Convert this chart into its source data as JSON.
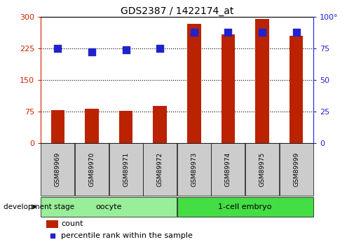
{
  "title": "GDS2387 / 1422174_at",
  "samples": [
    "GSM89969",
    "GSM89970",
    "GSM89971",
    "GSM89972",
    "GSM89973",
    "GSM89974",
    "GSM89975",
    "GSM89999"
  ],
  "counts": [
    78,
    82,
    77,
    88,
    283,
    258,
    296,
    255
  ],
  "percentile_ranks": [
    75,
    72,
    74,
    75,
    88,
    88,
    88,
    88
  ],
  "group_oocyte_label": "oocyte",
  "group_oocyte_color": "#99ee99",
  "group_embryo_label": "1-cell embryo",
  "group_embryo_color": "#44dd44",
  "bar_color": "#bb2200",
  "dot_color": "#2222cc",
  "ylim_left": [
    0,
    300
  ],
  "ylim_right": [
    0,
    100
  ],
  "yticks_left": [
    0,
    75,
    150,
    225,
    300
  ],
  "yticks_right": [
    0,
    25,
    50,
    75,
    100
  ],
  "left_axis_color": "#cc2200",
  "right_axis_color": "#2222cc",
  "bar_width": 0.4,
  "dot_size": 45,
  "label_box_color": "#cccccc",
  "legend_square_size": 8
}
